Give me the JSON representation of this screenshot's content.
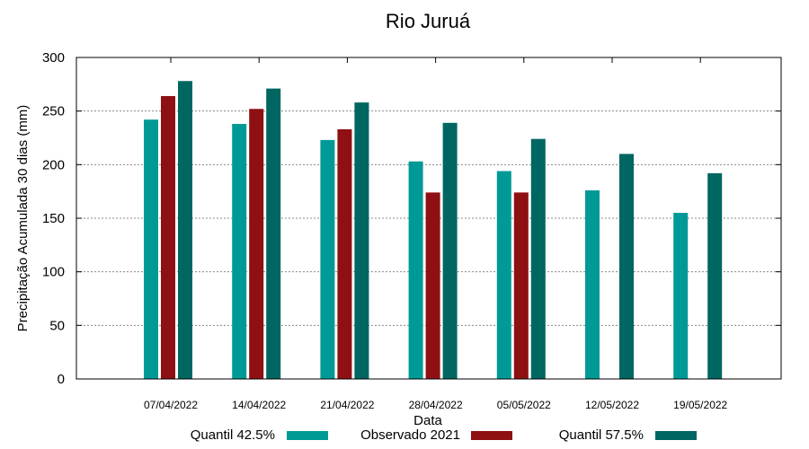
{
  "chart_data": {
    "type": "bar",
    "title": "Rio Juruá",
    "xlabel": "Data",
    "ylabel": "Precipitação Acumulada 30 dias (mm)",
    "ylim": [
      0,
      300
    ],
    "yticks": [
      0,
      50,
      100,
      150,
      200,
      250,
      300
    ],
    "grid": true,
    "legend_position": "bottom",
    "categories": [
      "07/04/2022",
      "14/04/2022",
      "21/04/2022",
      "28/04/2022",
      "05/05/2022",
      "12/05/2022",
      "19/05/2022"
    ],
    "series": [
      {
        "name": "Quantil 42.5%",
        "color": "#009a96",
        "values": [
          242,
          238,
          223,
          203,
          194,
          176,
          155
        ]
      },
      {
        "name": "Observado 2021",
        "color": "#8e1012",
        "values": [
          264,
          252,
          233,
          174,
          174,
          null,
          null
        ]
      },
      {
        "name": "Quantil 57.5%",
        "color": "#006661",
        "values": [
          278,
          271,
          258,
          239,
          224,
          210,
          192
        ]
      }
    ]
  }
}
